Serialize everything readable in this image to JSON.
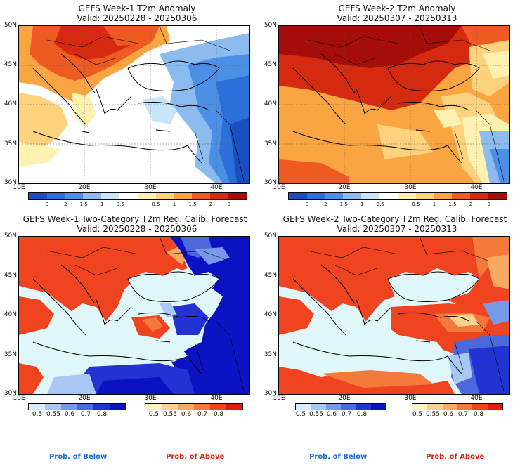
{
  "panels": [
    {
      "title_line1": "GEFS Week-1 T2m Anomaly",
      "title_line2": "Valid: 20250228 - 20250306",
      "kind": "anomaly"
    },
    {
      "title_line1": "GEFS Week-2 T2m Anomaly",
      "title_line2": "Valid: 20250307 - 20250313",
      "kind": "anomaly"
    },
    {
      "title_line1": "GEFS Week-1 Two-Category T2m Reg. Calib. Forecast",
      "title_line2": "Valid: 20250228 - 20250306",
      "kind": "probability"
    },
    {
      "title_line1": "GEFS Week-2 Two-Category T2m Reg. Calib. Forecast",
      "title_line2": "Valid: 20250307 - 20250313",
      "kind": "probability"
    }
  ],
  "axes": {
    "lat_labels": [
      "50N",
      "45N",
      "40N",
      "35N",
      "30N"
    ],
    "lon_labels": [
      "10E",
      "20E",
      "30E",
      "40E"
    ]
  },
  "anomaly_colorbar": {
    "labels": [
      "-3",
      "-2",
      "-1.5",
      "-1",
      "-0.5",
      "0.5",
      "1",
      "1.5",
      "2",
      "3"
    ],
    "colors": [
      "#1a4fc4",
      "#2d6fd8",
      "#4c8fe6",
      "#8cbbf0",
      "#c8e4f8",
      "#ffffff",
      "#fff2b0",
      "#fcd27c",
      "#f9a542",
      "#ee5a22",
      "#d62a10",
      "#a50e08"
    ]
  },
  "prob_below_colorbar": {
    "labels": [
      "0.5",
      "0.55",
      "0.6",
      "0.7",
      "0.8"
    ],
    "colors": [
      "#d8ecfb",
      "#a8c7f4",
      "#7898ea",
      "#4b68dc",
      "#2333d3",
      "#0a12c4"
    ]
  },
  "prob_above_colorbar": {
    "labels": [
      "0.5",
      "0.55",
      "0.6",
      "0.7",
      "0.8"
    ],
    "colors": [
      "#fff3c4",
      "#fdd291",
      "#f9a860",
      "#f47a3b",
      "#f0431f",
      "#e41a0e"
    ]
  },
  "legend": {
    "below_label": "Prob. of Below",
    "above_label": "Prob. of Above",
    "below_color": "#1b6fd8",
    "above_color": "#e01d12"
  }
}
